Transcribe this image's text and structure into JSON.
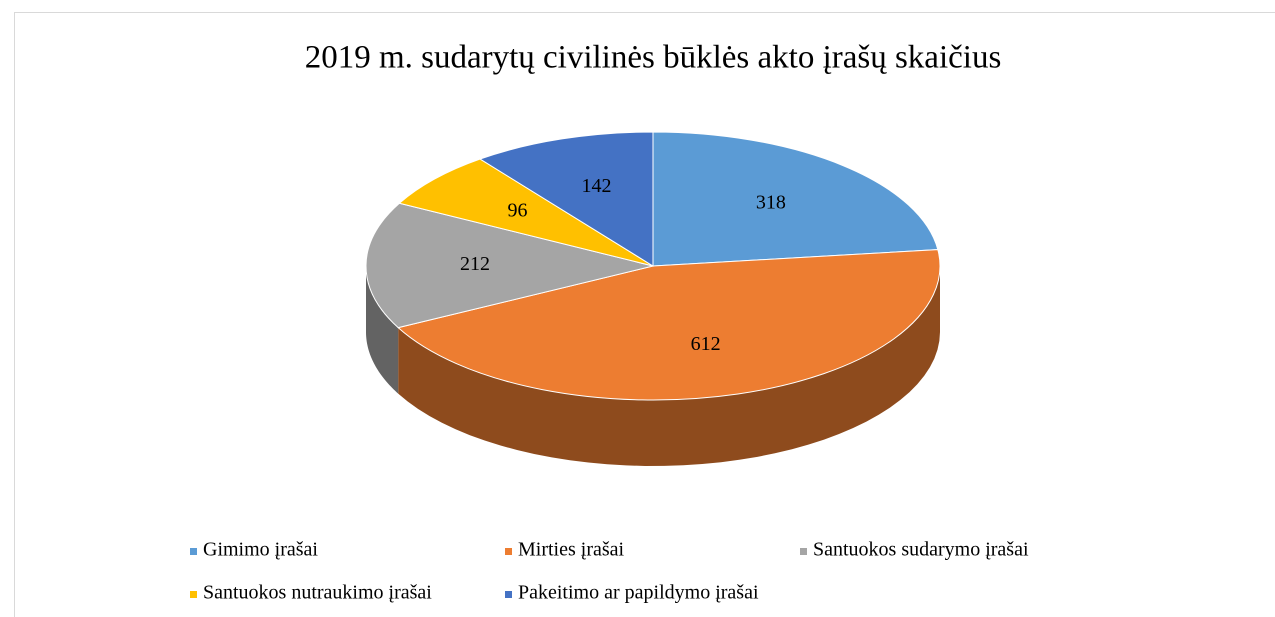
{
  "chart_data": {
    "type": "pie",
    "title": "2019 m. sudarytų civilinės būklės akto įrašų skaičius",
    "categories": [
      "Gimimo įrašai",
      "Mirties įrašai",
      "Santuokos sudarymo įrašai",
      "Santuokos nutraukimo įrašai",
      "Pakeitimo ar papildymo įrašai"
    ],
    "values": [
      318,
      612,
      212,
      96,
      142
    ],
    "colors": [
      "#5b9bd5",
      "#ed7d31",
      "#a5a5a5",
      "#ffc000",
      "#4472c4"
    ],
    "legend": "bottom"
  }
}
